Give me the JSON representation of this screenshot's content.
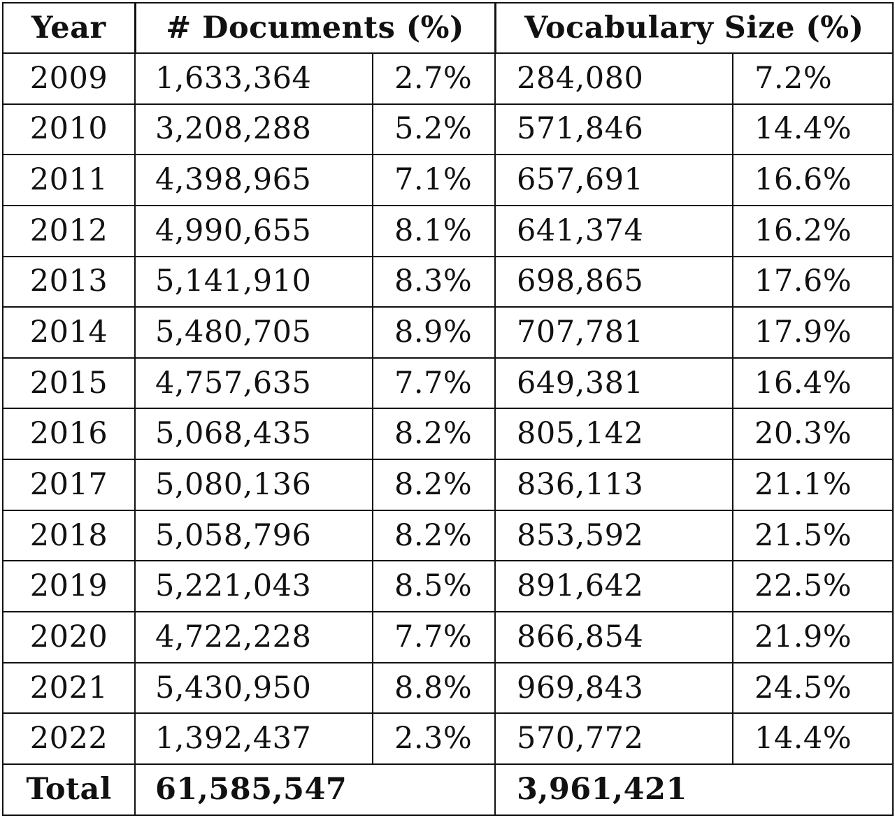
{
  "header": {
    "year": "Year",
    "documents": "# Documents (%)",
    "vocabulary": "Vocabulary Size (%)"
  },
  "rows": [
    {
      "year": "2009",
      "docs": "1,633,364",
      "docs_pct": "2.7%",
      "vocab": "284,080",
      "vocab_pct": "7.2%"
    },
    {
      "year": "2010",
      "docs": "3,208,288",
      "docs_pct": "5.2%",
      "vocab": "571,846",
      "vocab_pct": "14.4%"
    },
    {
      "year": "2011",
      "docs": "4,398,965",
      "docs_pct": "7.1%",
      "vocab": "657,691",
      "vocab_pct": "16.6%"
    },
    {
      "year": "2012",
      "docs": "4,990,655",
      "docs_pct": "8.1%",
      "vocab": "641,374",
      "vocab_pct": "16.2%"
    },
    {
      "year": "2013",
      "docs": "5,141,910",
      "docs_pct": "8.3%",
      "vocab": "698,865",
      "vocab_pct": "17.6%"
    },
    {
      "year": "2014",
      "docs": "5,480,705",
      "docs_pct": "8.9%",
      "vocab": "707,781",
      "vocab_pct": "17.9%"
    },
    {
      "year": "2015",
      "docs": "4,757,635",
      "docs_pct": "7.7%",
      "vocab": "649,381",
      "vocab_pct": "16.4%"
    },
    {
      "year": "2016",
      "docs": "5,068,435",
      "docs_pct": "8.2%",
      "vocab": "805,142",
      "vocab_pct": "20.3%"
    },
    {
      "year": "2017",
      "docs": "5,080,136",
      "docs_pct": "8.2%",
      "vocab": "836,113",
      "vocab_pct": "21.1%"
    },
    {
      "year": "2018",
      "docs": "5,058,796",
      "docs_pct": "8.2%",
      "vocab": "853,592",
      "vocab_pct": "21.5%"
    },
    {
      "year": "2019",
      "docs": "5,221,043",
      "docs_pct": "8.5%",
      "vocab": "891,642",
      "vocab_pct": "22.5%"
    },
    {
      "year": "2020",
      "docs": "4,722,228",
      "docs_pct": "7.7%",
      "vocab": "866,854",
      "vocab_pct": "21.9%"
    },
    {
      "year": "2021",
      "docs": "5,430,950",
      "docs_pct": "8.8%",
      "vocab": "969,843",
      "vocab_pct": "24.5%"
    },
    {
      "year": "2022",
      "docs": "1,392,437",
      "docs_pct": "2.3%",
      "vocab": "570,772",
      "vocab_pct": "14.4%"
    }
  ],
  "total": {
    "label": "Total",
    "docs": "61,585,547",
    "vocab": "3,961,421"
  }
}
